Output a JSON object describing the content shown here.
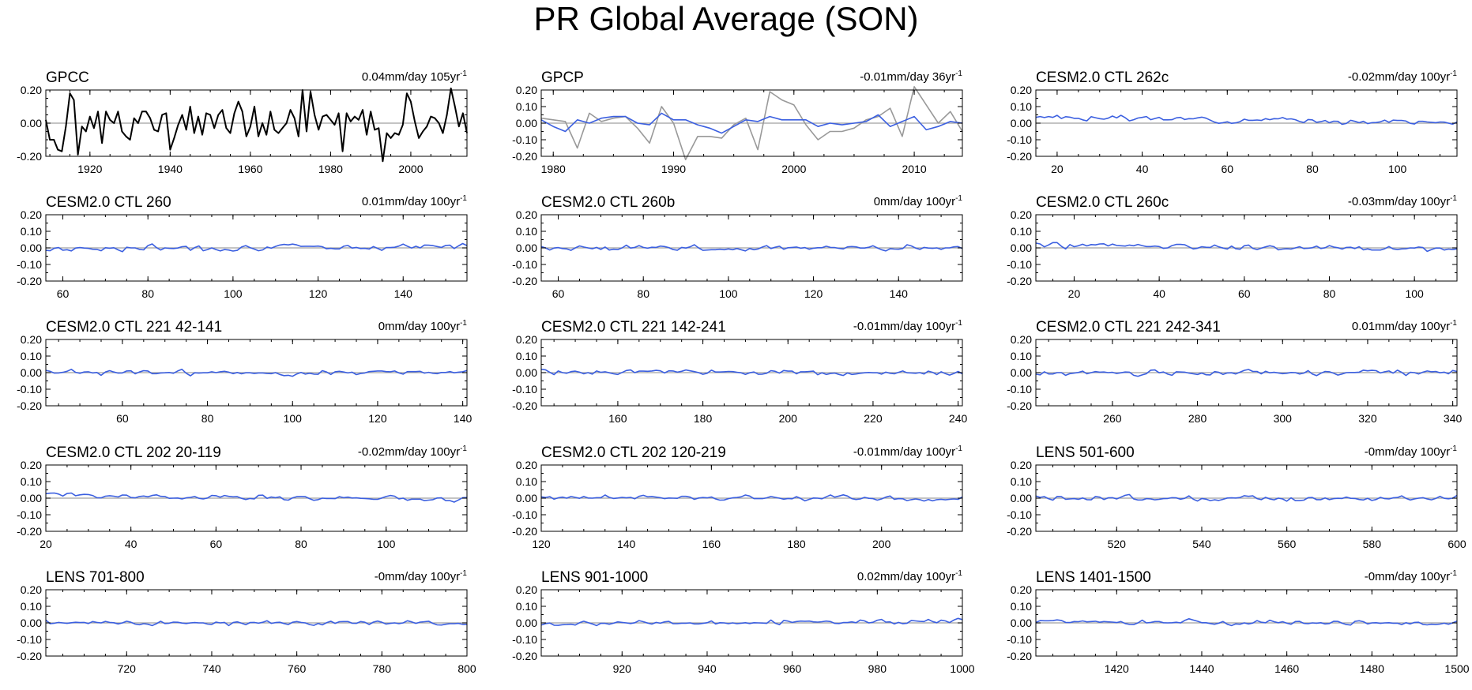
{
  "figure": {
    "title": "PR Global Average (SON)"
  },
  "colors": {
    "axis": "#000000",
    "zero_line": "#a0a0a0",
    "model": "#3b5fe0",
    "gpcc": "#000000",
    "gpcp_obs": "#999999"
  },
  "chart_data": [
    {
      "type": "line",
      "title": "GPCC",
      "trend": "0.04mm/day 105yr",
      "trend_exp": "-1",
      "xlim": [
        1909,
        2014
      ],
      "ylim": [
        -0.2,
        0.2
      ],
      "xticks": [
        1920,
        1940,
        1960,
        1980,
        2000
      ],
      "yticks": [
        0.2,
        0,
        -0.2
      ],
      "yticklabels": [
        "0.20",
        "0.00",
        "-0.20"
      ],
      "grid": false,
      "series": [
        {
          "color": "#000000",
          "seed": 11,
          "amp": 0.09,
          "x": [
            1909,
            1910,
            1911,
            1912,
            1913,
            1914,
            1915,
            1916,
            1917,
            1918,
            1919,
            1920,
            1921,
            1922,
            1923,
            1924,
            1925,
            1926,
            1927,
            1928,
            1929,
            1930,
            1931,
            1932,
            1933,
            1934,
            1935,
            1936,
            1937,
            1938,
            1939,
            1940,
            1941,
            1942,
            1943,
            1944,
            1945,
            1946,
            1947,
            1948,
            1949,
            1950,
            1951,
            1952,
            1953,
            1954,
            1955,
            1956,
            1957,
            1958,
            1959,
            1960,
            1961,
            1962,
            1963,
            1964,
            1965,
            1966,
            1967,
            1968,
            1969,
            1970,
            1971,
            1972,
            1973,
            1974,
            1975,
            1976,
            1977,
            1978,
            1979,
            1980,
            1981,
            1982,
            1983,
            1984,
            1985,
            1986,
            1987,
            1988,
            1989,
            1990,
            1991,
            1992,
            1993,
            1994,
            1995,
            1996,
            1997,
            1998,
            1999,
            2000,
            2001,
            2002,
            2003,
            2004,
            2005,
            2006,
            2007,
            2008,
            2009,
            2010,
            2011,
            2012,
            2013,
            2014
          ],
          "y": [
            0.02,
            -0.1,
            -0.1,
            -0.16,
            -0.17,
            -0.02,
            0.18,
            0.14,
            -0.19,
            -0.02,
            -0.05,
            0.04,
            -0.03,
            0.07,
            -0.12,
            0.07,
            0.02,
            0.0,
            0.07,
            -0.05,
            -0.08,
            -0.1,
            0.03,
            0.0,
            0.07,
            0.07,
            0.03,
            -0.04,
            -0.05,
            0.05,
            0.06,
            -0.16,
            -0.09,
            -0.01,
            0.05,
            -0.04,
            0.1,
            -0.06,
            0.04,
            -0.07,
            0.06,
            0.05,
            -0.03,
            0.05,
            0.08,
            -0.03,
            -0.06,
            0.06,
            0.13,
            0.07,
            -0.08,
            -0.02,
            0.1,
            -0.08,
            0.0,
            -0.07,
            0.07,
            -0.04,
            -0.06,
            -0.03,
            0.0,
            0.08,
            0.03,
            -0.08,
            0.2,
            -0.05,
            0.19,
            0.05,
            -0.04,
            0.04,
            0.05,
            0.02,
            -0.01,
            0.06,
            -0.17,
            0.06,
            0.01,
            0.04,
            0.02,
            0.08,
            -0.07,
            0.07,
            -0.04,
            -0.03,
            -0.23,
            -0.06,
            -0.09,
            -0.06,
            -0.07,
            -0.01,
            0.18,
            0.13,
            0.01,
            -0.09,
            -0.05,
            -0.02,
            0.04,
            0.03,
            0.0,
            -0.06,
            0.05,
            0.21,
            0.1,
            -0.02,
            0.06,
            -0.06
          ]
        }
      ]
    },
    {
      "type": "line",
      "title": "GPCP",
      "trend": "-0.01mm/day 36yr",
      "trend_exp": "-1",
      "xlim": [
        1979,
        2014
      ],
      "ylim": [
        -0.2,
        0.2
      ],
      "xticks": [
        1980,
        1990,
        2000,
        2010
      ],
      "yticks": [
        0.2,
        0.1,
        0,
        -0.1,
        -0.2
      ],
      "yticklabels": [
        "0.20",
        "0.10",
        "0.00",
        "-0.10",
        "-0.20"
      ],
      "grid": false,
      "series": [
        {
          "color": "#999999",
          "x": [
            1979,
            1980,
            1981,
            1982,
            1983,
            1984,
            1985,
            1986,
            1987,
            1988,
            1989,
            1990,
            1991,
            1992,
            1993,
            1994,
            1995,
            1996,
            1997,
            1998,
            1999,
            2000,
            2001,
            2002,
            2003,
            2004,
            2005,
            2006,
            2007,
            2008,
            2009,
            2010,
            2011,
            2012,
            2013,
            2014
          ],
          "y": [
            0.03,
            0.02,
            0.01,
            -0.15,
            0.06,
            0.01,
            0.03,
            0.04,
            -0.03,
            -0.12,
            0.1,
            0.0,
            -0.22,
            -0.08,
            -0.08,
            -0.09,
            -0.01,
            0.03,
            -0.16,
            0.19,
            0.14,
            0.11,
            -0.01,
            -0.1,
            -0.05,
            -0.05,
            -0.03,
            0.02,
            0.04,
            0.09,
            -0.08,
            0.22,
            0.11,
            0.0,
            0.07,
            -0.05
          ]
        },
        {
          "color": "#3b5fe0",
          "x": [
            1979,
            1980,
            1981,
            1982,
            1983,
            1984,
            1985,
            1986,
            1987,
            1988,
            1989,
            1990,
            1991,
            1992,
            1993,
            1994,
            1995,
            1996,
            1997,
            1998,
            1999,
            2000,
            2001,
            2002,
            2003,
            2004,
            2005,
            2006,
            2007,
            2008,
            2009,
            2010,
            2011,
            2012,
            2013,
            2014
          ],
          "y": [
            0.02,
            -0.02,
            -0.05,
            0.02,
            0.0,
            0.03,
            0.04,
            0.04,
            0.0,
            -0.01,
            0.06,
            0.02,
            0.02,
            -0.01,
            -0.03,
            -0.06,
            -0.02,
            0.02,
            0.01,
            0.04,
            0.02,
            0.02,
            0.02,
            -0.02,
            0.0,
            -0.01,
            0.0,
            0.01,
            0.05,
            -0.02,
            0.01,
            0.04,
            -0.04,
            -0.02,
            0.01,
            0.0
          ]
        }
      ]
    },
    {
      "type": "line",
      "title": "CESM2.0 CTL 262c",
      "trend": "-0.02mm/day 100yr",
      "trend_exp": "-1",
      "xlim": [
        15,
        114
      ],
      "ylim": [
        -0.2,
        0.2
      ],
      "xticks": [
        20,
        40,
        60,
        80,
        100
      ],
      "yticks": [
        0.2,
        0.1,
        0,
        -0.1,
        -0.2
      ],
      "yticklabels": [
        "0.20",
        "0.10",
        "0.00",
        "-0.10",
        "-0.20"
      ],
      "grid": false,
      "series": [
        {
          "color": "#3b5fe0",
          "seed": 3,
          "amp": 0.012,
          "drift": [
            0.035,
            0.005
          ]
        }
      ]
    },
    {
      "type": "line",
      "title": "CESM2.0 CTL 260",
      "trend": "0.01mm/day 100yr",
      "trend_exp": "-1",
      "xlim": [
        56,
        155
      ],
      "ylim": [
        -0.2,
        0.2
      ],
      "xticks": [
        60,
        80,
        100,
        120,
        140
      ],
      "yticks": [
        0.2,
        0.1,
        0,
        -0.1,
        -0.2
      ],
      "yticklabels": [
        "0.20",
        "0.10",
        "0.00",
        "-0.10",
        "-0.20"
      ],
      "grid": false,
      "series": [
        {
          "color": "#3b5fe0",
          "seed": 7,
          "amp": 0.014,
          "drift": [
            -0.005,
            0.01
          ]
        }
      ]
    },
    {
      "type": "line",
      "title": "CESM2.0 CTL 260b",
      "trend": "0mm/day 100yr",
      "trend_exp": "-1",
      "xlim": [
        56,
        155
      ],
      "ylim": [
        -0.2,
        0.2
      ],
      "xticks": [
        60,
        80,
        100,
        120,
        140
      ],
      "yticks": [
        0.2,
        0.1,
        0,
        -0.1,
        -0.2
      ],
      "yticklabels": [
        "0.20",
        "0.10",
        "0.00",
        "-0.10",
        "-0.20"
      ],
      "grid": false,
      "series": [
        {
          "color": "#3b5fe0",
          "seed": 13,
          "amp": 0.013,
          "drift": [
            0.0,
            0.0
          ]
        }
      ]
    },
    {
      "type": "line",
      "title": "CESM2.0 CTL 260c",
      "trend": "-0.03mm/day 100yr",
      "trend_exp": "-1",
      "xlim": [
        11,
        110
      ],
      "ylim": [
        -0.2,
        0.2
      ],
      "xticks": [
        20,
        40,
        60,
        80,
        100
      ],
      "yticks": [
        0.2,
        0.1,
        0,
        -0.1,
        -0.2
      ],
      "yticklabels": [
        "0.20",
        "0.10",
        "0.00",
        "-0.10",
        "-0.20"
      ],
      "grid": false,
      "series": [
        {
          "color": "#3b5fe0",
          "seed": 19,
          "amp": 0.013,
          "drift": [
            0.02,
            -0.01
          ]
        }
      ]
    },
    {
      "type": "line",
      "title": "CESM2.0 CTL 221 42-141",
      "trend": "0mm/day 100yr",
      "trend_exp": "-1",
      "xlim": [
        42,
        141
      ],
      "ylim": [
        -0.2,
        0.2
      ],
      "xticks": [
        60,
        80,
        100,
        120,
        140
      ],
      "yticks": [
        0.2,
        0.1,
        0,
        -0.1,
        -0.2
      ],
      "yticklabels": [
        "0.20",
        "0.10",
        "0.00",
        "-0.10",
        "-0.20"
      ],
      "grid": false,
      "series": [
        {
          "color": "#3b5fe0",
          "seed": 23,
          "amp": 0.012,
          "drift": [
            0.0,
            0.0
          ]
        }
      ]
    },
    {
      "type": "line",
      "title": "CESM2.0 CTL 221 142-241",
      "trend": "-0.01mm/day 100yr",
      "trend_exp": "-1",
      "xlim": [
        142,
        241
      ],
      "ylim": [
        -0.2,
        0.2
      ],
      "xticks": [
        160,
        180,
        200,
        220,
        240
      ],
      "yticks": [
        0.2,
        0.1,
        0,
        -0.1,
        -0.2
      ],
      "yticklabels": [
        "0.20",
        "0.10",
        "0.00",
        "-0.10",
        "-0.20"
      ],
      "grid": false,
      "series": [
        {
          "color": "#3b5fe0",
          "seed": 29,
          "amp": 0.012,
          "drift": [
            0.005,
            -0.005
          ]
        }
      ]
    },
    {
      "type": "line",
      "title": "CESM2.0 CTL 221 242-341",
      "trend": "0.01mm/day 100yr",
      "trend_exp": "-1",
      "xlim": [
        242,
        341
      ],
      "ylim": [
        -0.2,
        0.2
      ],
      "xticks": [
        260,
        280,
        300,
        320,
        340
      ],
      "yticks": [
        0.2,
        0.1,
        0,
        -0.1,
        -0.2
      ],
      "yticklabels": [
        "0.20",
        "0.10",
        "0.00",
        "-0.10",
        "-0.20"
      ],
      "grid": false,
      "series": [
        {
          "color": "#3b5fe0",
          "seed": 31,
          "amp": 0.012,
          "drift": [
            -0.005,
            0.005
          ]
        }
      ]
    },
    {
      "type": "line",
      "title": "CESM2.0 CTL 202 20-119",
      "trend": "-0.02mm/day 100yr",
      "trend_exp": "-1",
      "xlim": [
        20,
        119
      ],
      "ylim": [
        -0.2,
        0.2
      ],
      "xticks": [
        20,
        40,
        60,
        80,
        100
      ],
      "yticks": [
        0.2,
        0.1,
        0,
        -0.1,
        -0.2
      ],
      "yticklabels": [
        "0.20",
        "0.10",
        "0.00",
        "-0.10",
        "-0.20"
      ],
      "grid": false,
      "series": [
        {
          "color": "#3b5fe0",
          "seed": 37,
          "amp": 0.012,
          "drift": [
            0.015,
            -0.005
          ]
        }
      ]
    },
    {
      "type": "line",
      "title": "CESM2.0 CTL 202 120-219",
      "trend": "-0.01mm/day 100yr",
      "trend_exp": "-1",
      "xlim": [
        120,
        219
      ],
      "ylim": [
        -0.2,
        0.2
      ],
      "xticks": [
        120,
        140,
        160,
        180,
        200
      ],
      "yticks": [
        0.2,
        0.1,
        0,
        -0.1,
        -0.2
      ],
      "yticklabels": [
        "0.20",
        "0.10",
        "0.00",
        "-0.10",
        "-0.20"
      ],
      "grid": false,
      "series": [
        {
          "color": "#3b5fe0",
          "seed": 41,
          "amp": 0.012,
          "drift": [
            0.005,
            -0.005
          ]
        }
      ]
    },
    {
      "type": "line",
      "title": "LENS 501-600",
      "trend": "-0mm/day 100yr",
      "trend_exp": "-1",
      "xlim": [
        501,
        600
      ],
      "ylim": [
        -0.2,
        0.2
      ],
      "xticks": [
        520,
        540,
        560,
        580,
        600
      ],
      "yticks": [
        0.2,
        0.1,
        0,
        -0.1,
        -0.2
      ],
      "yticklabels": [
        "0.20",
        "0.10",
        "0.00",
        "-0.10",
        "-0.20"
      ],
      "grid": false,
      "series": [
        {
          "color": "#3b5fe0",
          "seed": 43,
          "amp": 0.012,
          "drift": [
            0.0,
            0.0
          ]
        }
      ]
    },
    {
      "type": "line",
      "title": "LENS 701-800",
      "trend": "-0mm/day 100yr",
      "trend_exp": "-1",
      "xlim": [
        701,
        800
      ],
      "ylim": [
        -0.2,
        0.2
      ],
      "xticks": [
        720,
        740,
        760,
        780,
        800
      ],
      "yticks": [
        0.2,
        0.1,
        0,
        -0.1,
        -0.2
      ],
      "yticklabels": [
        "0.20",
        "0.10",
        "0.00",
        "-0.10",
        "-0.20"
      ],
      "grid": false,
      "series": [
        {
          "color": "#3b5fe0",
          "seed": 47,
          "amp": 0.011,
          "drift": [
            0.0,
            0.0
          ]
        }
      ]
    },
    {
      "type": "line",
      "title": "LENS 901-1000",
      "trend": "0.02mm/day 100yr",
      "trend_exp": "-1",
      "xlim": [
        901,
        1000
      ],
      "ylim": [
        -0.2,
        0.2
      ],
      "xticks": [
        920,
        940,
        960,
        980,
        1000
      ],
      "yticks": [
        0.2,
        0.1,
        0,
        -0.1,
        -0.2
      ],
      "yticklabels": [
        "0.20",
        "0.10",
        "0.00",
        "-0.10",
        "-0.20"
      ],
      "grid": false,
      "series": [
        {
          "color": "#3b5fe0",
          "seed": 53,
          "amp": 0.011,
          "drift": [
            -0.005,
            0.01
          ]
        }
      ]
    },
    {
      "type": "line",
      "title": "LENS 1401-1500",
      "trend": "-0mm/day 100yr",
      "trend_exp": "-1",
      "xlim": [
        1401,
        1500
      ],
      "ylim": [
        -0.2,
        0.2
      ],
      "xticks": [
        1420,
        1440,
        1460,
        1480,
        1500
      ],
      "yticks": [
        0.2,
        0.1,
        0,
        -0.1,
        -0.2
      ],
      "yticklabels": [
        "0.20",
        "0.10",
        "0.00",
        "-0.10",
        "-0.20"
      ],
      "grid": false,
      "series": [
        {
          "color": "#3b5fe0",
          "seed": 59,
          "amp": 0.011,
          "drift": [
            0.01,
            -0.005
          ]
        }
      ]
    }
  ]
}
